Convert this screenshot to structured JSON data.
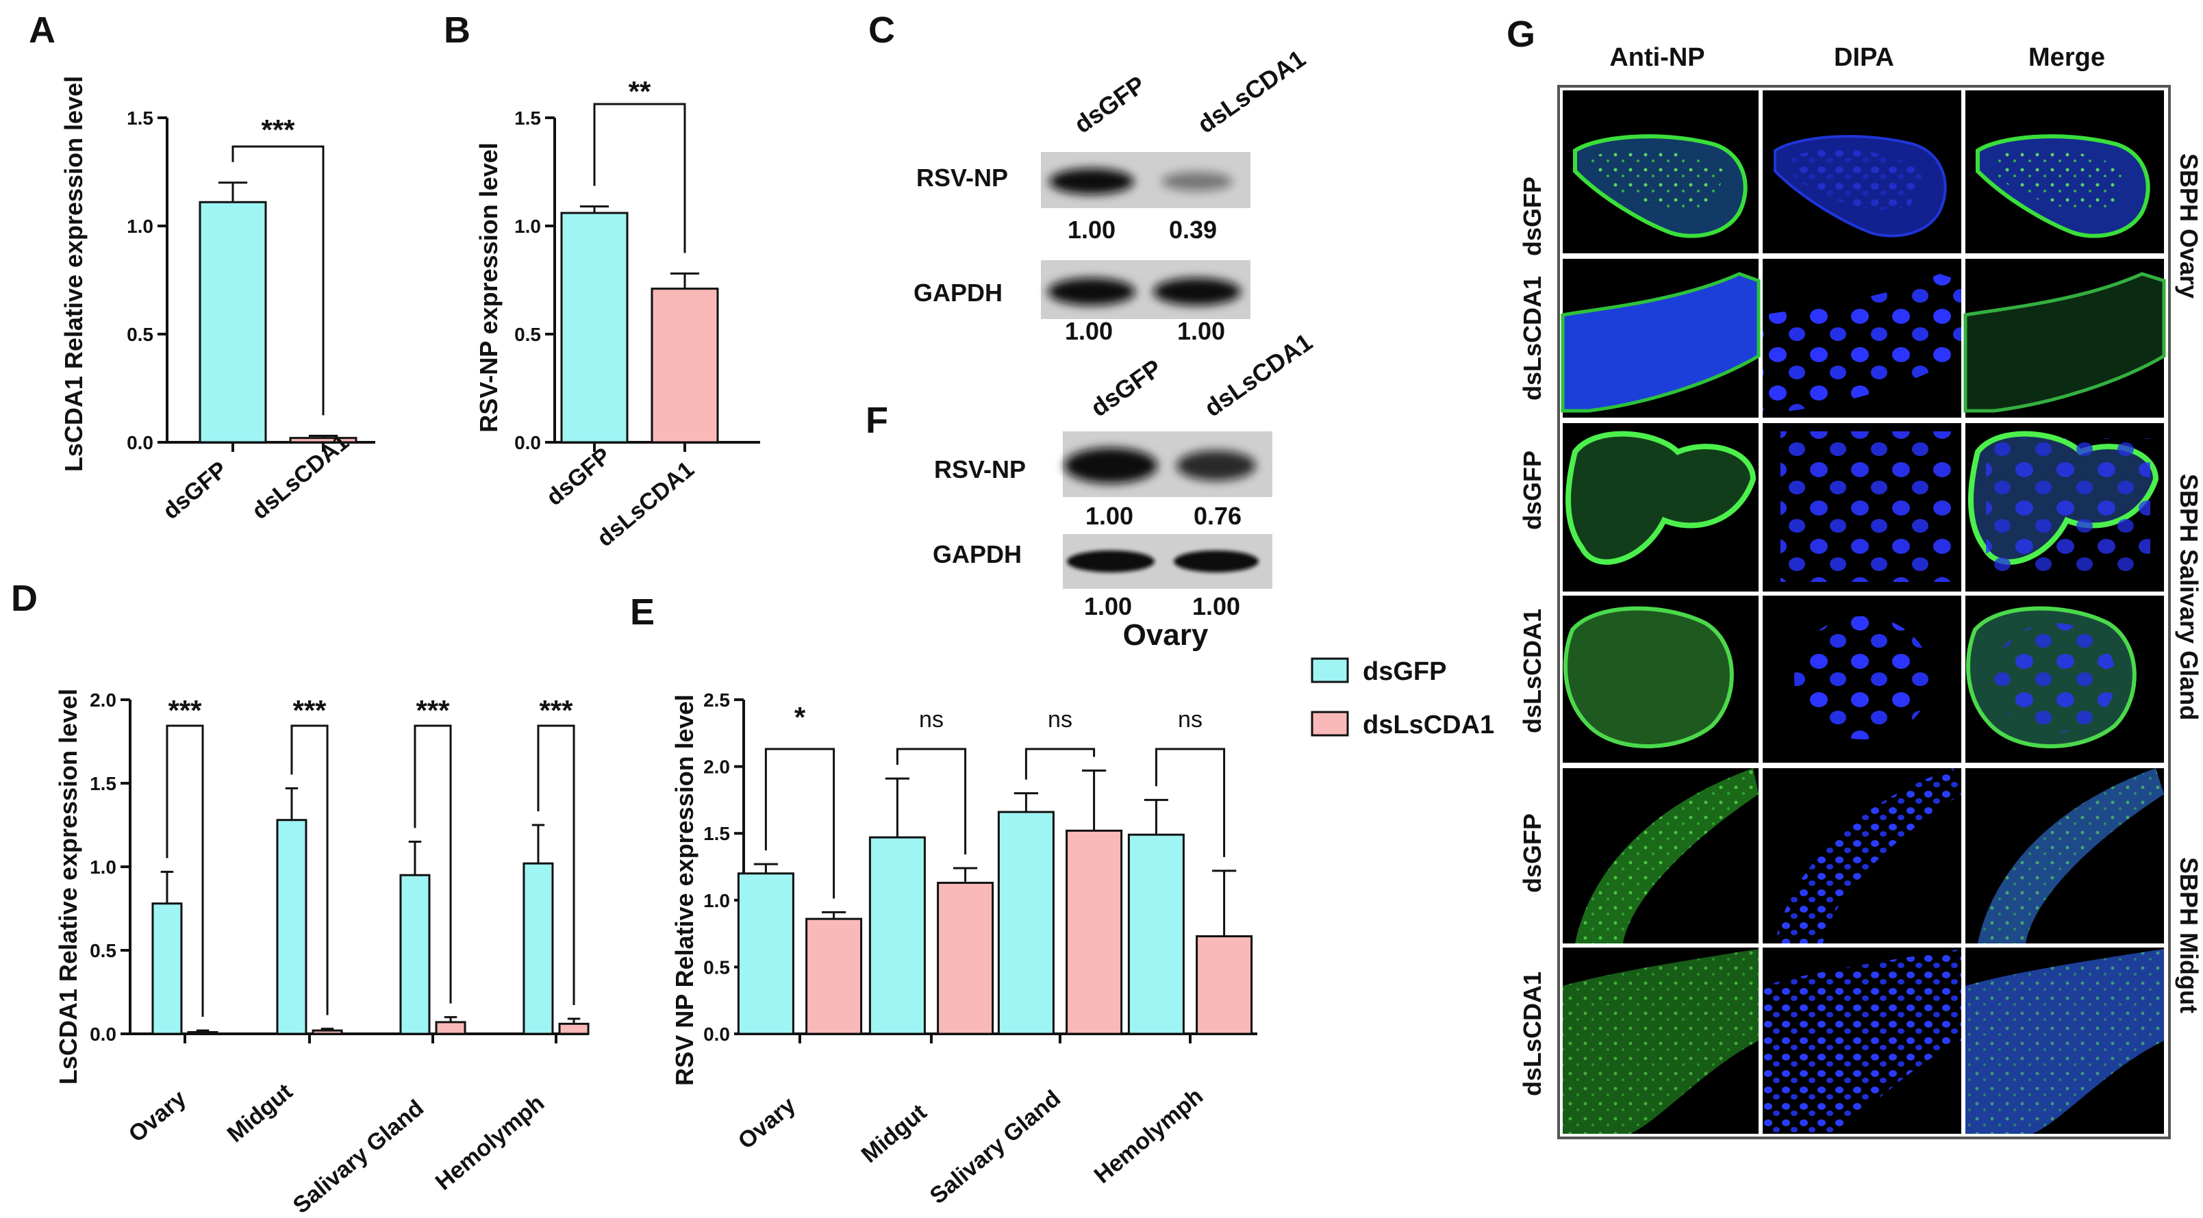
{
  "colors": {
    "dsGFP": "#9ff4f4",
    "dsLsCDA1": "#fab9b9",
    "axis": "#111111"
  },
  "panels": {
    "A": "A",
    "B": "B",
    "C": "C",
    "D": "D",
    "E": "E",
    "F": "F",
    "G": "G"
  },
  "legend": {
    "items": [
      "dsGFP",
      "dsLsCDA1"
    ]
  },
  "chart_data": [
    {
      "panel": "A",
      "type": "bar",
      "categories": [
        "dsGFP",
        "dsLsCDA1"
      ],
      "values": [
        1.11,
        0.02
      ],
      "errors": [
        0.09,
        0.01
      ],
      "ylabel": "LsCDA1 Relative expression level",
      "ylim": [
        0,
        1.5
      ],
      "yticks": [
        "0.0",
        "0.5",
        "1.0",
        "1.5"
      ],
      "significance": [
        {
          "pair": [
            0,
            1
          ],
          "label": "***"
        }
      ]
    },
    {
      "panel": "B",
      "type": "bar",
      "categories": [
        "dsGFP",
        "dsLsCDA1"
      ],
      "values": [
        1.06,
        0.71
      ],
      "errors": [
        0.03,
        0.07
      ],
      "ylabel": "RSV-NP expression level",
      "ylim": [
        0,
        1.5
      ],
      "yticks": [
        "0.0",
        "0.5",
        "1.0",
        "1.5"
      ],
      "significance": [
        {
          "pair": [
            0,
            1
          ],
          "label": "**"
        }
      ]
    },
    {
      "panel": "D",
      "type": "bar",
      "categories": [
        "Ovary",
        "Midgut",
        "Salivary Gland",
        "Hemolymph"
      ],
      "series": [
        {
          "name": "dsGFP",
          "values": [
            0.78,
            1.28,
            0.95,
            1.02
          ],
          "errors": [
            0.19,
            0.19,
            0.2,
            0.23
          ]
        },
        {
          "name": "dsLsCDA1",
          "values": [
            0.01,
            0.02,
            0.07,
            0.06
          ],
          "errors": [
            0.01,
            0.01,
            0.03,
            0.03
          ]
        }
      ],
      "ylabel": "LsCDA1 Relative expression level",
      "ylim": [
        0,
        2.0
      ],
      "yticks": [
        "0.0",
        "0.5",
        "1.0",
        "1.5",
        "2.0"
      ],
      "significance": [
        "***",
        "***",
        "***",
        "***"
      ]
    },
    {
      "panel": "E",
      "type": "bar",
      "categories": [
        "Ovary",
        "Midgut",
        "Salivary Gland",
        "Hemolymph"
      ],
      "series": [
        {
          "name": "dsGFP",
          "values": [
            1.2,
            1.47,
            1.66,
            1.49
          ],
          "errors": [
            0.07,
            0.44,
            0.14,
            0.26
          ]
        },
        {
          "name": "dsLsCDA1",
          "values": [
            0.86,
            1.13,
            1.52,
            0.73
          ],
          "errors": [
            0.05,
            0.11,
            0.45,
            0.49
          ]
        }
      ],
      "ylabel": "RSV NP Relative expression level",
      "ylim": [
        0,
        2.5
      ],
      "yticks": [
        "0.0",
        "0.5",
        "1.0",
        "1.5",
        "2.0",
        "2.5"
      ],
      "significance": [
        "*",
        "ns",
        "ns",
        "ns"
      ],
      "legend": "right"
    }
  ],
  "western_blots": [
    {
      "panel": "C",
      "lanes": [
        "dsGFP",
        "dsLsCDA1"
      ],
      "rows": [
        {
          "label": "RSV-NP",
          "values": [
            "1.00",
            "0.39"
          ],
          "intensity": [
            1.0,
            0.39
          ]
        },
        {
          "label": "GAPDH",
          "values": [
            "1.00",
            "1.00"
          ],
          "intensity": [
            1.0,
            1.0
          ]
        }
      ]
    },
    {
      "panel": "F",
      "lanes": [
        "dsGFP",
        "dsLsCDA1"
      ],
      "rows": [
        {
          "label": "RSV-NP",
          "values": [
            "1.00",
            "0.76"
          ],
          "intensity": [
            1.0,
            0.76
          ]
        },
        {
          "label": "GAPDH",
          "values": [
            "1.00",
            "1.00"
          ],
          "intensity": [
            1.0,
            1.0
          ]
        }
      ],
      "caption": "Ovary"
    }
  ],
  "microscopy": {
    "panel": "G",
    "columns": [
      "Anti-NP",
      "DIPA",
      "Merge"
    ],
    "row_labels": [
      "dsGFP",
      "dsLsCDA1",
      "dsGFP",
      "dsLsCDA1",
      "dsGFP",
      "dsLsCDA1"
    ],
    "group_labels": [
      "SBPH Ovary",
      "SBPH Salivary Gland",
      "SBPH Midgut"
    ]
  }
}
